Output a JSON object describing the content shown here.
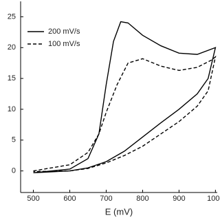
{
  "chart_data": {
    "type": "line",
    "xlabel": "E (mV)",
    "xlim": [
      465,
      1005
    ],
    "xticks": [
      500,
      600,
      700,
      800,
      900,
      1000
    ],
    "ylim": [
      -3.5,
      27.5
    ],
    "yticks": [
      0,
      5,
      10,
      15,
      20,
      25
    ],
    "legend": "upper left",
    "series": [
      {
        "name": "200 mV/s",
        "color": "#000000",
        "line_style": "solid",
        "x": [
          500,
          600,
          650,
          680,
          700,
          720,
          740,
          760,
          800,
          850,
          900,
          950,
          1000,
          980,
          950,
          900,
          850,
          800,
          750,
          700,
          650,
          600,
          500
        ],
        "values": [
          -0.3,
          0.3,
          2,
          6,
          14,
          21,
          24.2,
          24,
          22,
          20.3,
          19.1,
          18.9,
          20,
          15,
          12.5,
          10,
          7.8,
          5.5,
          3.2,
          1.5,
          0.5,
          0,
          -0.3
        ]
      },
      {
        "name": "100 mV/s",
        "color": "#000000",
        "line_style": "dashed",
        "x": [
          500,
          600,
          650,
          680,
          700,
          730,
          760,
          800,
          850,
          900,
          950,
          990,
          1000,
          980,
          950,
          900,
          850,
          800,
          750,
          700,
          650,
          600,
          500
        ],
        "values": [
          0,
          1,
          3,
          6,
          9.5,
          14,
          17.5,
          18.2,
          17,
          16.3,
          16.8,
          18,
          18.5,
          13,
          10.5,
          8,
          6,
          4,
          2.5,
          1.3,
          0.4,
          0,
          -0.1
        ]
      }
    ]
  }
}
